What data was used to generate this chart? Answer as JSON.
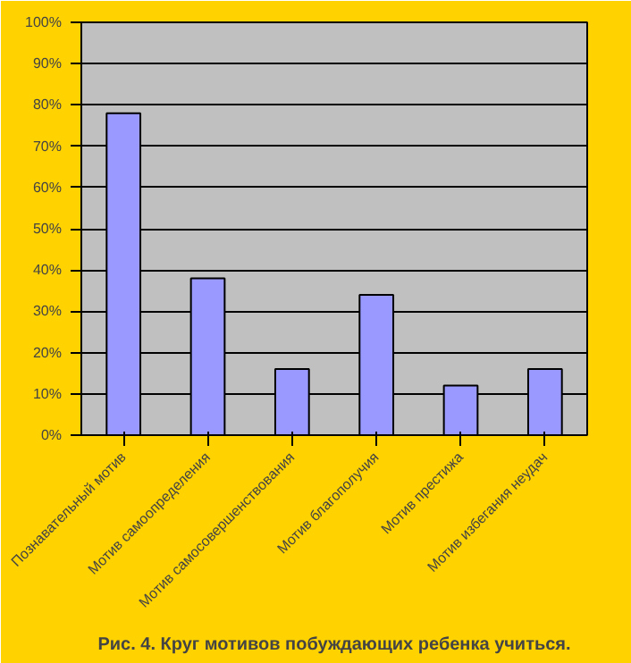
{
  "chart_data": {
    "type": "bar",
    "title": "Рис. 4. Круг мотивов побуждающих ребенка учиться.",
    "categories": [
      "Познавательный мотив",
      "Мотив самоопределения",
      "Мотив самосовершенствования",
      "Мотив благополучия",
      "Мотив престижа",
      "Мотив избегания неудач"
    ],
    "values": [
      78,
      38,
      16,
      34,
      12,
      16
    ],
    "color": "#9999ff",
    "ylim": [
      0,
      100
    ],
    "yticks": [
      {
        "value": 0,
        "label": "0%"
      },
      {
        "value": 10,
        "label": "10%"
      },
      {
        "value": 20,
        "label": "20%"
      },
      {
        "value": 30,
        "label": "30%"
      },
      {
        "value": 40,
        "label": "40%"
      },
      {
        "value": 50,
        "label": "50%"
      },
      {
        "value": 60,
        "label": "60%"
      },
      {
        "value": 70,
        "label": "70%"
      },
      {
        "value": 80,
        "label": "80%"
      },
      {
        "value": 90,
        "label": "90%"
      },
      {
        "value": 100,
        "label": "100%"
      }
    ],
    "grid": "y"
  }
}
